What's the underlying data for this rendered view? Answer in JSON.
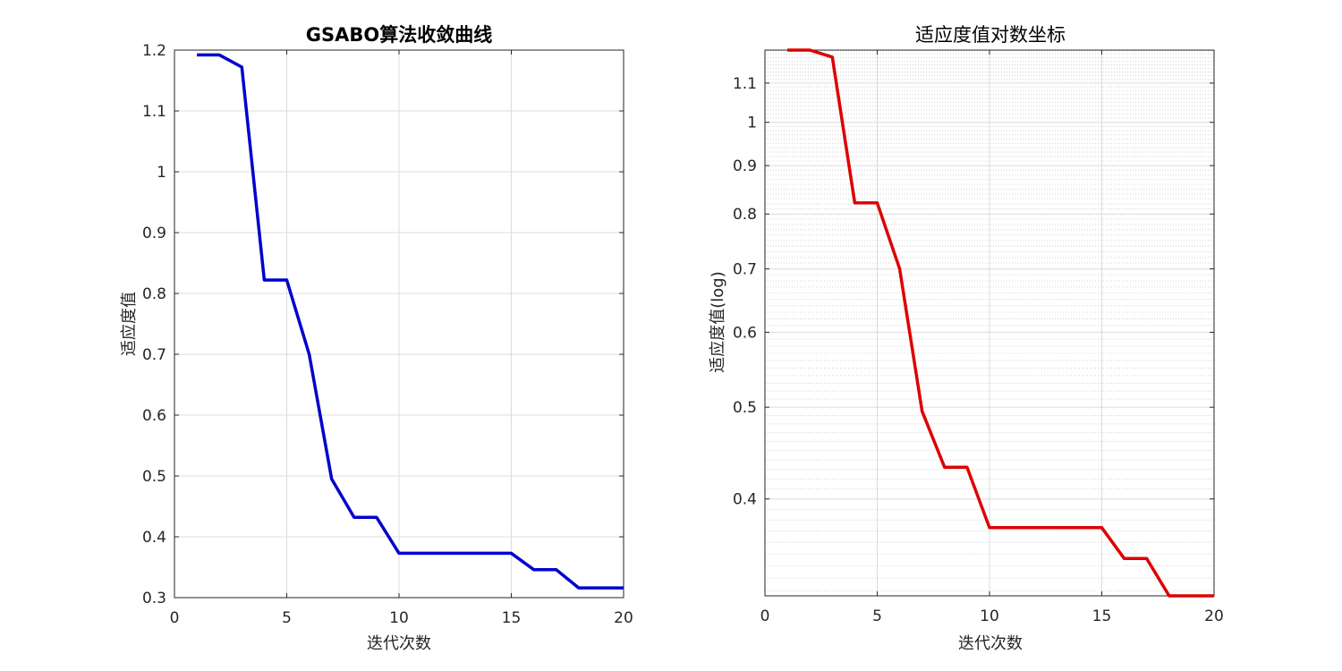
{
  "chart_data": [
    {
      "type": "line",
      "title": "GSABO算法收敛曲线",
      "xlabel": "迭代次数",
      "ylabel": "适应度值",
      "xlim": [
        0,
        20
      ],
      "ylim": [
        0.3,
        1.2
      ],
      "yscale": "linear",
      "grid": true,
      "xticks": [
        0,
        5,
        10,
        15,
        20
      ],
      "yticks": [
        0.3,
        0.4,
        0.5,
        0.6,
        0.7,
        0.8,
        0.9,
        1.0,
        1.1,
        1.2
      ],
      "xtick_labels": [
        "0",
        "5",
        "10",
        "15",
        "20"
      ],
      "ytick_labels": [
        "0.3",
        "0.4",
        "0.5",
        "0.6",
        "0.7",
        "0.8",
        "0.9",
        "1",
        "1.1",
        "1.2"
      ],
      "color": "#0000CC",
      "series": [
        {
          "x": [
            1,
            2,
            3,
            4,
            5,
            6,
            7,
            8,
            9,
            10,
            11,
            12,
            13,
            14,
            15,
            16,
            17,
            18,
            19,
            20
          ],
          "values": [
            1.192,
            1.192,
            1.172,
            0.822,
            0.822,
            0.7,
            0.495,
            0.432,
            0.432,
            0.373,
            0.373,
            0.373,
            0.373,
            0.373,
            0.373,
            0.346,
            0.346,
            0.316,
            0.316,
            0.316
          ]
        }
      ]
    },
    {
      "type": "line",
      "title": "适应度值对数坐标",
      "xlabel": "迭代次数",
      "ylabel": "适应度值(log)",
      "xlim": [
        0,
        20
      ],
      "ylim": [
        0.316,
        1.192
      ],
      "yscale": "log",
      "grid": true,
      "minor_grid": true,
      "xticks": [
        0,
        5,
        10,
        15,
        20
      ],
      "yticks": [
        0.4,
        0.5,
        0.6,
        0.7,
        0.8,
        0.9,
        1.0,
        1.1
      ],
      "xtick_labels": [
        "0",
        "5",
        "10",
        "15",
        "20"
      ],
      "ytick_labels": [
        "0.4",
        "0.5",
        "0.6",
        "0.7",
        "0.8",
        "0.9",
        "1",
        "1.1"
      ],
      "color": "#DD0000",
      "series": [
        {
          "x": [
            1,
            2,
            3,
            4,
            5,
            6,
            7,
            8,
            9,
            10,
            11,
            12,
            13,
            14,
            15,
            16,
            17,
            18,
            19,
            20
          ],
          "values": [
            1.192,
            1.192,
            1.172,
            0.822,
            0.822,
            0.7,
            0.495,
            0.432,
            0.432,
            0.373,
            0.373,
            0.373,
            0.373,
            0.373,
            0.373,
            0.346,
            0.346,
            0.316,
            0.316,
            0.316
          ]
        }
      ]
    }
  ]
}
